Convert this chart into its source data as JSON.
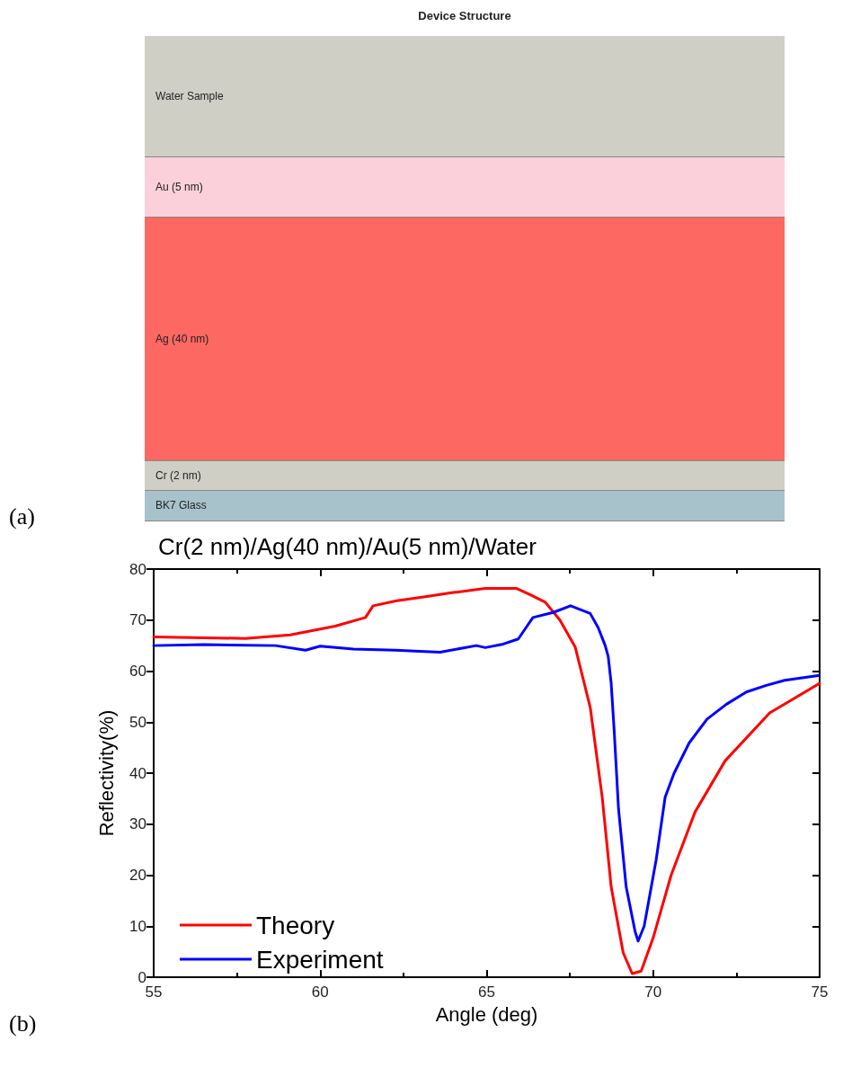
{
  "chart_data": [
    {
      "type": "other",
      "title": "Device Structure",
      "annotations": [
        "Water Sample",
        "Au (5 nm)",
        "Ag (40 nm)",
        "Cr (2 nm)",
        "BK7 Glass",
        "(a)"
      ]
    },
    {
      "type": "line",
      "title": "Cr(2 nm)/Ag(40 nm)/Au(5 nm)/Water",
      "xlabel": "Angle (deg)",
      "ylabel": "Reflectivity(%)",
      "xlim": [
        55,
        75
      ],
      "xticks": [
        55,
        60,
        65,
        70,
        75
      ],
      "ylim": [
        0,
        80
      ],
      "yticks": [
        0,
        10,
        20,
        30,
        40,
        50,
        60,
        70,
        80
      ],
      "grid": false,
      "legend": "bottom left",
      "marker": "none",
      "line_style": "solid",
      "annotations": [
        "(b)"
      ],
      "series": [
        {
          "name": "Theory",
          "color": "#ff0000",
          "x": [
            55,
            57.75,
            59.1,
            60.45,
            61.36,
            61.59,
            62.3,
            63.16,
            64,
            64.96,
            65.9,
            66.3,
            66.76,
            67.2,
            67.66,
            68.11,
            68.47,
            68.74,
            69.1,
            69.37,
            69.64,
            70.0,
            70.54,
            71.26,
            72.16,
            73.5,
            75
          ],
          "values": [
            66.7,
            66.4,
            67.1,
            68.8,
            70.5,
            72.8,
            73.8,
            74.6,
            75.4,
            76.2,
            76.2,
            75,
            73.5,
            70,
            64.7,
            52.9,
            35.3,
            17.7,
            4.8,
            0.7,
            1.2,
            7.7,
            20,
            32.4,
            42.4,
            51.8,
            57.6
          ]
        },
        {
          "name": "Experiment",
          "color": "#0000ff",
          "x": [
            55,
            56.5,
            58.66,
            59.56,
            60.0,
            61,
            62.26,
            63.6,
            64.69,
            64.96,
            65.5,
            65.95,
            66.39,
            67.0,
            67.52,
            68.11,
            68.35,
            68.56,
            68.65,
            68.74,
            68.83,
            68.96,
            69.19,
            69.46,
            69.55,
            69.73,
            70.09,
            70.36,
            70.63,
            71.08,
            71.62,
            72.2,
            72.8,
            73.4,
            73.95,
            74.95
          ],
          "values": [
            65.0,
            65.2,
            65.0,
            64.1,
            64.9,
            64.3,
            64.1,
            63.7,
            65.0,
            64.6,
            65.3,
            66.3,
            70.5,
            71.5,
            72.8,
            71.3,
            68.5,
            65,
            62.9,
            57.6,
            48.3,
            33,
            17.7,
            8.9,
            7.1,
            10,
            23,
            35.3,
            40,
            45.9,
            50.6,
            53.5,
            55.9,
            57.2,
            58.2,
            59.1
          ]
        }
      ]
    }
  ]
}
